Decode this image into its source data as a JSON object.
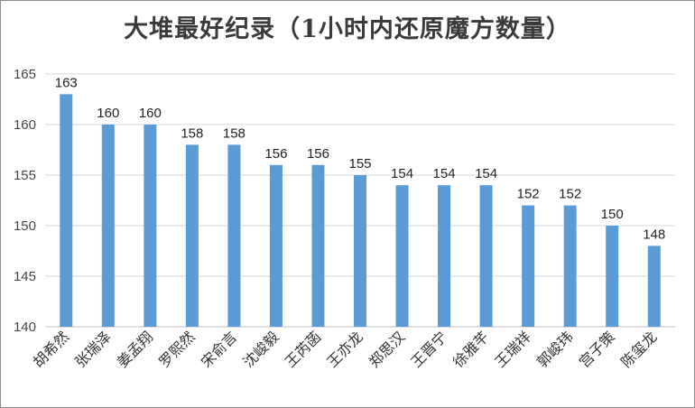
{
  "chart_data": {
    "type": "bar",
    "title": "大堆最好纪录（1小时内还原魔方数量）",
    "xlabel": "",
    "ylabel": "",
    "categories": [
      "胡希然",
      "张瑞泽",
      "姜孟翔",
      "罗熙然",
      "宋俞言",
      "沈峻毅",
      "王芮菡",
      "王亦龙",
      "郑思汉",
      "王晋宁",
      "徐雅芊",
      "王瑞祥",
      "郭峻玮",
      "宫子策",
      "陈玺龙"
    ],
    "values": [
      163,
      160,
      160,
      158,
      158,
      156,
      156,
      155,
      154,
      154,
      154,
      152,
      152,
      150,
      148
    ],
    "ylim": [
      140,
      165
    ],
    "yticks": [
      140,
      145,
      150,
      155,
      160,
      165
    ],
    "grid": true,
    "bar_color": "#5b9bd5",
    "grid_color": "#d9d9d9"
  }
}
